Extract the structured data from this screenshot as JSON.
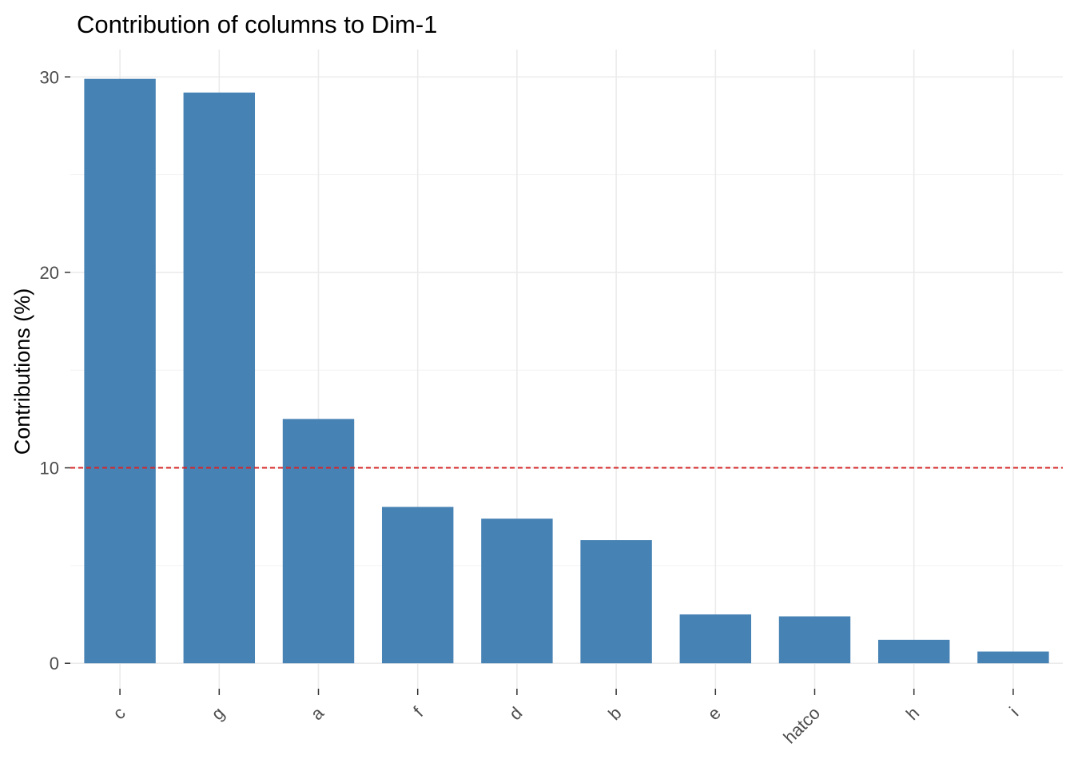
{
  "chart_data": {
    "type": "bar",
    "title": "Contribution of columns to Dim-1",
    "xlabel": "",
    "ylabel": "Contributions (%)",
    "categories": [
      "c",
      "g",
      "a",
      "f",
      "d",
      "b",
      "e",
      "hatco",
      "h",
      "i"
    ],
    "values": [
      29.9,
      29.2,
      12.5,
      8.0,
      7.4,
      6.3,
      2.5,
      2.4,
      1.2,
      0.6
    ],
    "ylim": [
      -1.3,
      31.4
    ],
    "yticks": [
      0,
      10,
      20,
      30
    ],
    "ytick_labels": [
      "0",
      "10",
      "20",
      "30"
    ],
    "reference_line": {
      "value": 10,
      "color": "#d62728",
      "style": "dashed"
    },
    "bar_color": "#4682b4",
    "grid": true,
    "legend": "none"
  }
}
